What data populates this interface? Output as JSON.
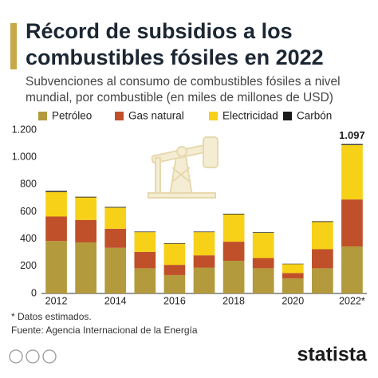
{
  "chart_data": {
    "type": "stacked-bar",
    "title": [
      "Récord de subsidios a los",
      "combustibles fósiles en 2022"
    ],
    "subtitle": [
      "Subvenciones al consumo de combustibles fósiles a nivel",
      "mundial, por combustible (en miles de millones de USD)"
    ],
    "categories": [
      "2012",
      null,
      "2014",
      null,
      "2016",
      null,
      "2018",
      null,
      "2020",
      null,
      "2022*"
    ],
    "series": [
      {
        "name": "Petróleo",
        "color": "#b39a3c",
        "values": [
          385,
          375,
          335,
          185,
          135,
          190,
          240,
          185,
          110,
          185,
          345
        ]
      },
      {
        "name": "Gas natural",
        "color": "#c0502a",
        "values": [
          180,
          165,
          140,
          120,
          75,
          90,
          140,
          75,
          40,
          140,
          345
        ]
      },
      {
        "name": "Electricidad",
        "color": "#f7d117",
        "values": [
          180,
          165,
          155,
          145,
          155,
          170,
          200,
          185,
          65,
          200,
          400
        ]
      },
      {
        "name": "Carbón",
        "color": "#1a1a1a",
        "values": [
          8,
          5,
          5,
          4,
          4,
          4,
          5,
          4,
          3,
          5,
          7
        ]
      }
    ],
    "total_label": {
      "value": 1097,
      "label": "1.097"
    },
    "ylim": [
      0,
      1200
    ],
    "yticks": [
      {
        "value": 1200,
        "label": "1.200"
      },
      {
        "value": 1000,
        "label": "1.000"
      },
      800,
      600,
      400,
      200,
      0
    ],
    "grid": false,
    "notes": [
      "* Datos estimados.",
      "Fuente: Agencia Internacional de la Energía"
    ],
    "brand": "statista"
  }
}
